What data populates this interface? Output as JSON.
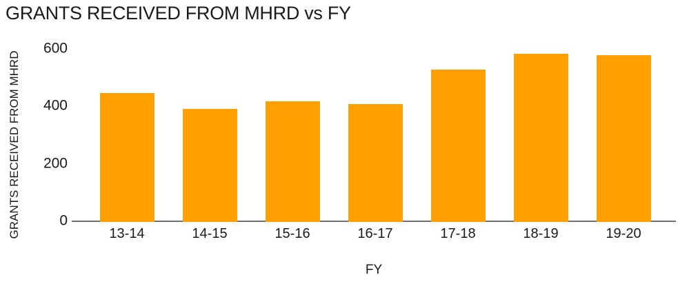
{
  "chart_data": {
    "type": "bar",
    "title": "GRANTS RECEIVED FROM MHRD vs FY",
    "xlabel": "FY",
    "ylabel": "GRANTS RECEIVED FROM MHRD",
    "categories": [
      "13-14",
      "14-15",
      "15-16",
      "16-17",
      "17-18",
      "18-19",
      "19-20"
    ],
    "values": [
      445,
      390,
      415,
      405,
      525,
      580,
      575
    ],
    "ylim": [
      0,
      600
    ],
    "yticks": [
      0,
      200,
      400,
      600
    ],
    "grid": false,
    "legend": "none"
  },
  "colors": {
    "bar": "#FFA000",
    "axis_line": "#6F6F6F",
    "text": "#1A1A1A",
    "background": "#FFFFFF"
  }
}
